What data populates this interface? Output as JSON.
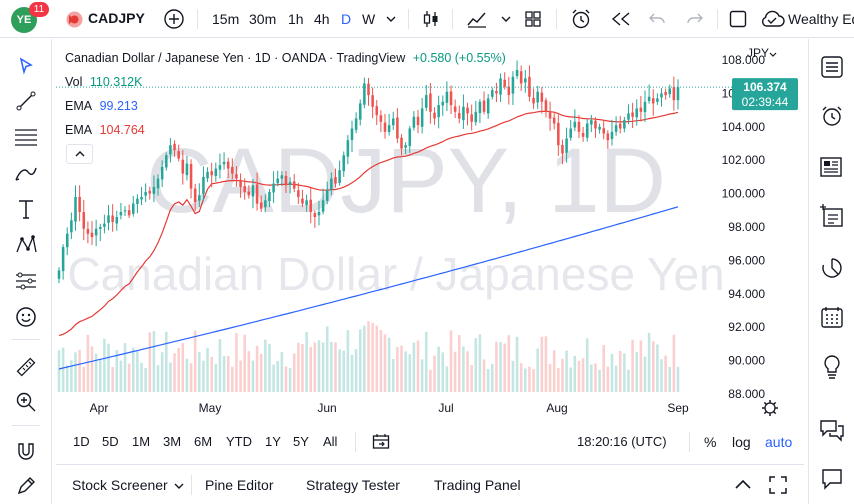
{
  "topbar": {
    "notifications": "11",
    "avatar_text": "YE",
    "symbol": "CADJPY",
    "intervals": [
      "15m",
      "30m",
      "1h",
      "4h",
      "D",
      "W"
    ],
    "active_interval": "D",
    "account_label": "Wealthy Ed"
  },
  "legend": {
    "title": "Canadian Dollar / Japanese Yen · 1D · OANDA · TradingView",
    "change": "+0.580 (+0.55%)",
    "vol_label": "Vol",
    "vol_value": "110.312K",
    "ema1_label": "EMA",
    "ema1_value": "99.213",
    "ema2_label": "EMA",
    "ema2_value": "104.764"
  },
  "watermark": {
    "main": "CADJPY, 1D",
    "sub": "Canadian Dollar / Japanese Yen"
  },
  "price_axis": {
    "currency": "JPY",
    "ticks": [
      "108.000",
      "106.000",
      "104.000",
      "102.000",
      "100.000",
      "98.000",
      "96.000",
      "94.000",
      "92.000",
      "90.000",
      "88.000"
    ],
    "last_price": "106.374",
    "countdown": "02:39:44"
  },
  "time_axis": {
    "labels": [
      "Apr",
      "May",
      "Jun",
      "Jul",
      "Aug",
      "Sep"
    ]
  },
  "rangebar": {
    "ranges": [
      "1D",
      "5D",
      "1M",
      "3M",
      "6M",
      "YTD",
      "1Y",
      "5Y",
      "All"
    ],
    "clock": "18:20:16 (UTC)",
    "percent": "%",
    "log": "log",
    "auto": "auto"
  },
  "bottom_panel": {
    "tabs": [
      "Stock Screener",
      "Pine Editor",
      "Strategy Tester",
      "Trading Panel"
    ]
  },
  "colors": {
    "up": "#26a69a",
    "down": "#ef5350",
    "ema_long": "#2962ff",
    "ema_short": "#e53935",
    "accent": "#2962ff",
    "change_up": "#089981"
  },
  "chart_data": {
    "type": "candlestick",
    "ylim": [
      88,
      108.6
    ],
    "x_labels": [
      "Apr",
      "May",
      "Jun",
      "Jul",
      "Aug",
      "Sep"
    ],
    "close": [
      95.4,
      96.8,
      97.6,
      98.4,
      99.8,
      98.9,
      97.9,
      97.6,
      97.4,
      97.9,
      98.0,
      98.2,
      98.7,
      98.3,
      98.6,
      98.9,
      99.0,
      98.7,
      99.4,
      99.7,
      99.8,
      100.1,
      100.0,
      100.4,
      100.9,
      101.6,
      102.3,
      102.9,
      102.6,
      102.1,
      101.2,
      101.8,
      100.3,
      99.5,
      99.9,
      101.0,
      101.3,
      101.1,
      101.5,
      101.7,
      101.9,
      101.5,
      101.2,
      100.9,
      100.4,
      100.1,
      99.9,
      100.5,
      99.4,
      99.1,
      99.6,
      100.1,
      100.6,
      100.9,
      101.1,
      100.5,
      100.7,
      100.3,
      99.8,
      99.4,
      99.6,
      98.9,
      98.6,
      98.9,
      99.6,
      100.2,
      100.9,
      100.6,
      101.4,
      102.3,
      103.2,
      103.9,
      104.5,
      105.4,
      106.6,
      105.9,
      105.2,
      104.7,
      104.3,
      103.7,
      104.1,
      104.5,
      103.3,
      102.7,
      102.9,
      103.9,
      104.6,
      104.1,
      105.1,
      105.9,
      104.9,
      104.5,
      105.3,
      105.5,
      106.1,
      105.3,
      104.9,
      104.5,
      105.2,
      104.8,
      104.3,
      104.9,
      105.5,
      104.9,
      105.7,
      106.2,
      106.0,
      106.9,
      106.4,
      105.9,
      107.0,
      107.4,
      106.6,
      106.9,
      105.8,
      105.4,
      106.1,
      105.5,
      104.9,
      104.5,
      104.2,
      102.9,
      102.4,
      103.3,
      103.9,
      104.3,
      103.7,
      103.4,
      104.2,
      104.4,
      103.9,
      104.0,
      103.6,
      103.2,
      103.7,
      104.1,
      103.9,
      104.4,
      104.8,
      104.6,
      105.1,
      104.9,
      105.5,
      105.8,
      105.4,
      105.7,
      106.0,
      105.9,
      106.3,
      105.6,
      106.374
    ],
    "ema_short_range": [
      91.5,
      104.764
    ],
    "ema_long_range": [
      89.5,
      99.213
    ],
    "volume_range": [
      0,
      160
    ]
  }
}
